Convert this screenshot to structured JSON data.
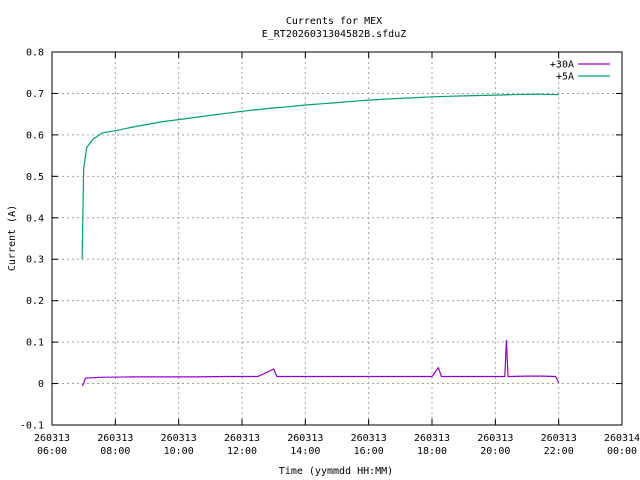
{
  "chart_data": {
    "type": "line",
    "title": "Currents for MEX",
    "subtitle": "E_RT2026031304582B.sfduZ",
    "xlabel": "Time (yymmdd HH:MM)",
    "ylabel": "Current (A)",
    "xlim": [
      6,
      24
    ],
    "ylim": [
      -0.1,
      0.8
    ],
    "grid": true,
    "legend_position": "top-right",
    "x_ticks": [
      {
        "value": 6,
        "date": "260313",
        "time": "06:00"
      },
      {
        "value": 8,
        "date": "260313",
        "time": "08:00"
      },
      {
        "value": 10,
        "date": "260313",
        "time": "10:00"
      },
      {
        "value": 12,
        "date": "260313",
        "time": "12:00"
      },
      {
        "value": 14,
        "date": "260313",
        "time": "14:00"
      },
      {
        "value": 16,
        "date": "260313",
        "time": "16:00"
      },
      {
        "value": 18,
        "date": "260313",
        "time": "18:00"
      },
      {
        "value": 20,
        "date": "260313",
        "time": "20:00"
      },
      {
        "value": 22,
        "date": "260313",
        "time": "22:00"
      },
      {
        "value": 24,
        "date": "260314",
        "time": "00:00"
      }
    ],
    "y_ticks": [
      "-0.1",
      "0",
      "0.1",
      "0.2",
      "0.3",
      "0.4",
      "0.5",
      "0.6",
      "0.7",
      "0.8"
    ],
    "series": [
      {
        "name": "+30A",
        "color": "#9400d3",
        "points": [
          [
            6.95,
            -0.005
          ],
          [
            7.0,
            0.0
          ],
          [
            7.05,
            0.013
          ],
          [
            7.5,
            0.015
          ],
          [
            8.5,
            0.016
          ],
          [
            9.5,
            0.016
          ],
          [
            10.5,
            0.016
          ],
          [
            11.5,
            0.017
          ],
          [
            12.5,
            0.017
          ],
          [
            13.0,
            0.035
          ],
          [
            13.1,
            0.017
          ],
          [
            14.0,
            0.017
          ],
          [
            15.0,
            0.017
          ],
          [
            16.0,
            0.017
          ],
          [
            17.0,
            0.017
          ],
          [
            18.0,
            0.017
          ],
          [
            18.2,
            0.038
          ],
          [
            18.3,
            0.017
          ],
          [
            19.0,
            0.017
          ],
          [
            20.0,
            0.017
          ],
          [
            20.3,
            0.017
          ],
          [
            20.35,
            0.105
          ],
          [
            20.4,
            0.017
          ],
          [
            21.0,
            0.018
          ],
          [
            21.5,
            0.018
          ],
          [
            21.9,
            0.017
          ],
          [
            22.0,
            0.002
          ]
        ]
      },
      {
        "name": "+5A",
        "color": "#009e73",
        "points": [
          [
            6.95,
            0.3
          ],
          [
            7.0,
            0.52
          ],
          [
            7.1,
            0.57
          ],
          [
            7.3,
            0.59
          ],
          [
            7.6,
            0.605
          ],
          [
            8.0,
            0.61
          ],
          [
            8.5,
            0.618
          ],
          [
            9.0,
            0.625
          ],
          [
            9.5,
            0.632
          ],
          [
            10.0,
            0.637
          ],
          [
            10.5,
            0.642
          ],
          [
            11.0,
            0.647
          ],
          [
            11.5,
            0.652
          ],
          [
            12.0,
            0.657
          ],
          [
            12.5,
            0.661
          ],
          [
            13.0,
            0.665
          ],
          [
            13.5,
            0.668
          ],
          [
            14.0,
            0.672
          ],
          [
            14.5,
            0.675
          ],
          [
            15.0,
            0.678
          ],
          [
            15.5,
            0.681
          ],
          [
            16.0,
            0.684
          ],
          [
            16.5,
            0.686
          ],
          [
            17.0,
            0.688
          ],
          [
            17.5,
            0.69
          ],
          [
            18.0,
            0.692
          ],
          [
            18.5,
            0.693
          ],
          [
            19.0,
            0.694
          ],
          [
            19.5,
            0.695
          ],
          [
            20.0,
            0.696
          ],
          [
            20.5,
            0.697
          ],
          [
            21.0,
            0.698
          ],
          [
            21.5,
            0.698
          ],
          [
            22.0,
            0.697
          ]
        ]
      }
    ]
  }
}
